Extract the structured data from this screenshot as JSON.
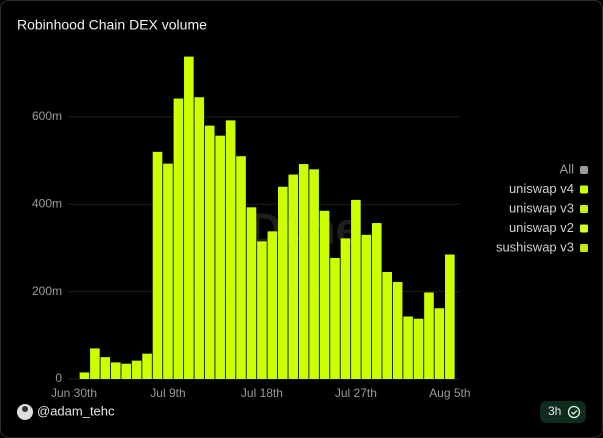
{
  "chart_data": {
    "type": "bar",
    "title": "Robinhood Chain DEX volume",
    "categories": [
      "Jun 30th",
      null,
      null,
      null,
      null,
      null,
      null,
      null,
      null,
      "Jul 9th",
      null,
      null,
      null,
      null,
      null,
      null,
      null,
      null,
      "Jul 18th",
      null,
      null,
      null,
      null,
      null,
      null,
      null,
      null,
      "Jul 27th",
      null,
      null,
      null,
      null,
      null,
      null,
      null,
      null,
      "Aug 5th"
    ],
    "values": [
      null,
      15000000,
      70000000,
      50000000,
      38000000,
      35000000,
      42000000,
      58000000,
      520000000,
      493000000,
      642000000,
      738000000,
      645000000,
      580000000,
      557000000,
      592000000,
      510000000,
      393000000,
      315000000,
      338000000,
      440000000,
      468000000,
      492000000,
      480000000,
      385000000,
      277000000,
      322000000,
      410000000,
      330000000,
      357000000,
      245000000,
      222000000,
      143000000,
      138000000,
      198000000,
      162000000,
      285000000
    ],
    "color": "#ccff00",
    "ylim": [
      0,
      760000000
    ],
    "yticks": [
      0,
      {
        "value": 200000000,
        "label": "200m"
      },
      {
        "value": 400000000,
        "label": "400m"
      },
      {
        "value": 600000000,
        "label": "600m"
      }
    ],
    "grid": true,
    "legend": [
      {
        "name": "All",
        "color": "#9a9a9a"
      },
      {
        "name": "uniswap v4",
        "color": "#ccff00"
      },
      {
        "name": "uniswap v3",
        "color": "#c4f21c"
      },
      {
        "name": "uniswap v2",
        "color": "#d6ff2a"
      },
      {
        "name": "sushiswap v3",
        "color": "#c0f000"
      }
    ],
    "legend_position": "right",
    "watermark": "Dune"
  },
  "footer": {
    "author": "@adam_tehc",
    "refresh": "3h"
  }
}
